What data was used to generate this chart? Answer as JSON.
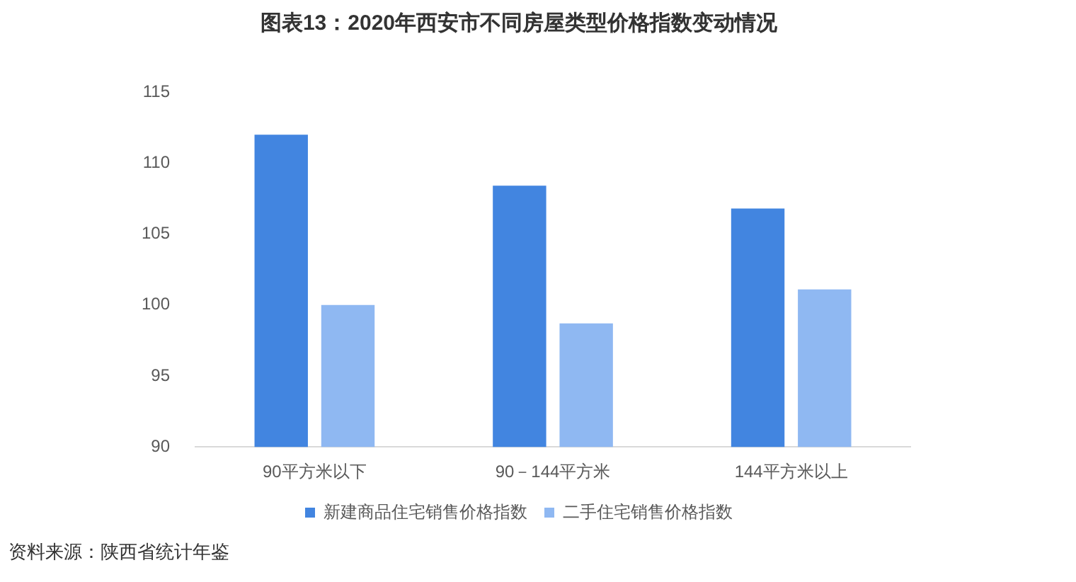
{
  "chart_data": {
    "type": "bar",
    "title": "图表13：2020年西安市不同房屋类型价格指数变动情况",
    "categories": [
      "90平方米以下",
      "90－144平方米",
      "144平方米以上"
    ],
    "series": [
      {
        "name": "新建商品住宅销售价格指数",
        "color": "#4285e0",
        "values": [
          112.0,
          108.4,
          106.8
        ]
      },
      {
        "name": "二手住宅销售价格指数",
        "color": "#8fb8f2",
        "values": [
          100.0,
          98.7,
          101.1
        ]
      }
    ],
    "ylim": [
      90,
      115
    ],
    "yticks": [
      90,
      95,
      100,
      105,
      110,
      115
    ],
    "legend": "bottom",
    "annotations": [
      "资料来源：陕西省统计年鉴"
    ]
  }
}
